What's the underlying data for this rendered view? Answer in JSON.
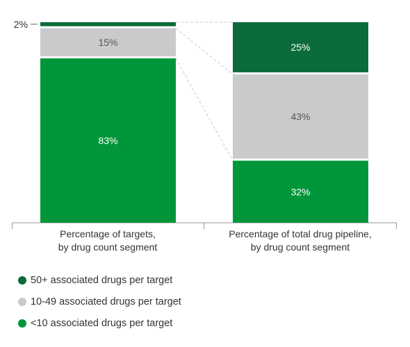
{
  "chart_data": {
    "type": "bar",
    "stacked": true,
    "normalized_percent": true,
    "categories": [
      "Percentage of targets, by drug count segment",
      "Percentage of total drug pipeline, by drug count segment"
    ],
    "category_lines": [
      [
        "Percentage of targets,",
        "by drug count segment"
      ],
      [
        "Percentage of total drug pipeline,",
        "by drug count segment"
      ]
    ],
    "series": [
      {
        "name": "<10 associated drugs per target",
        "values": [
          83,
          32
        ],
        "labels": [
          "83%",
          "32%"
        ],
        "color": "#009639",
        "label_color": "#ffffff"
      },
      {
        "name": "10-49 associated drugs per target",
        "values": [
          15,
          43
        ],
        "labels": [
          "15%",
          "43%"
        ],
        "color": "#c8cacb",
        "label_color": "#555555"
      },
      {
        "name": "50+ associated drugs per target",
        "values": [
          2,
          25
        ],
        "labels": [
          "2%",
          "25%"
        ],
        "color": "#0b6b3a",
        "label_color": "#ffffff"
      }
    ],
    "ylim": [
      0,
      100
    ],
    "legend_position": "bottom-left",
    "legend_order": [
      2,
      1,
      0
    ],
    "grid": false,
    "connector_lines": "dashed"
  }
}
